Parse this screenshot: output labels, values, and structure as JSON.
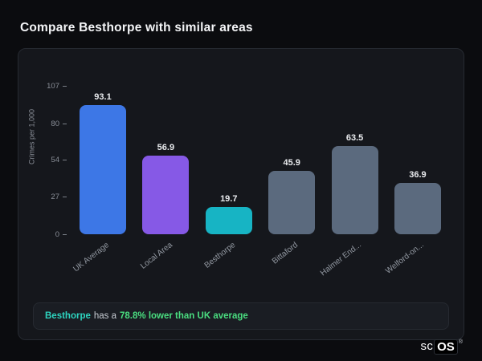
{
  "header": {
    "title": "Compare Besthorpe with similar areas"
  },
  "chart_data": {
    "type": "bar",
    "title": "",
    "categories": [
      "UK Average",
      "Local Area",
      "Besthorpe",
      "Bittaford",
      "Halmer End...",
      "Welford-on..."
    ],
    "values": [
      93.1,
      56.9,
      19.7,
      45.9,
      63.5,
      36.9
    ],
    "bar_colors": [
      "#3d77e6",
      "#8659e6",
      "#17b4c4",
      "#5b6a7e",
      "#5b6a7e",
      "#5b6a7e"
    ],
    "xlabel": "",
    "ylabel": "Crimes per 1,000",
    "yticks": [
      0,
      27,
      54,
      80,
      107
    ],
    "ylim": [
      0,
      107
    ],
    "grid": false,
    "legend": "none"
  },
  "summary": {
    "area_label": "Besthorpe",
    "middle_text": "has a",
    "highlight_text": "78.8% lower than UK average",
    "area_color": "#2dd4bf",
    "highlight_color": "#4ade80"
  },
  "logo": {
    "text_plain": "sc",
    "text_boxed": "OS",
    "registered_mark": "®"
  }
}
